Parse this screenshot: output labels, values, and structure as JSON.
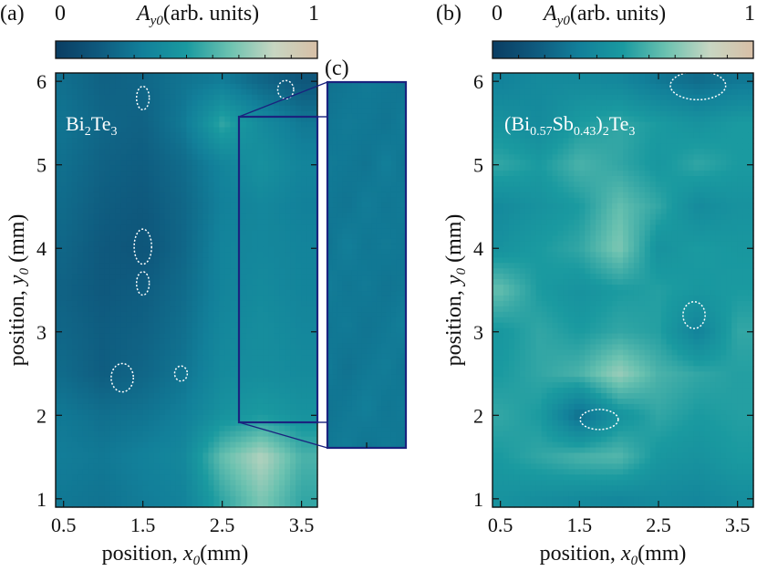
{
  "colors": {
    "colormap": [
      "#0a3d62",
      "#0f5a7e",
      "#12809a",
      "#1a9aa0",
      "#6cc2b0",
      "#c7d6c2",
      "#d8bfa6"
    ],
    "frame": "#111111",
    "inset_box": "#1a237e",
    "ellipse": "#ffffff"
  },
  "chart_data": [
    {
      "panel_label": "(a)",
      "type": "heatmap",
      "title": "Bi₂Te₃",
      "xlabel": "position, x₀(mm)",
      "ylabel": "position, y₀ (mm)",
      "xlim": [
        0.4,
        3.7
      ],
      "ylim": [
        0.9,
        6.1
      ],
      "xticks": [
        "0.5",
        "1.5",
        "2.5",
        "3.5"
      ],
      "yticks": [
        "1",
        "2",
        "3",
        "4",
        "5",
        "6"
      ],
      "colorbar": {
        "min_label": "0",
        "max_label": "1",
        "label": "A_y0 (arb. units)",
        "range": [
          0,
          1
        ]
      },
      "x": [
        0.5,
        1.0,
        1.5,
        2.0,
        2.5,
        3.0,
        3.5
      ],
      "y": [
        1.0,
        1.5,
        2.0,
        2.5,
        3.0,
        3.5,
        4.0,
        4.5,
        5.0,
        5.5,
        6.0
      ],
      "z": [
        [
          0.3,
          0.28,
          0.32,
          0.35,
          0.55,
          0.7,
          0.55
        ],
        [
          0.32,
          0.3,
          0.34,
          0.38,
          0.65,
          0.8,
          0.6
        ],
        [
          0.3,
          0.26,
          0.28,
          0.33,
          0.45,
          0.5,
          0.45
        ],
        [
          0.24,
          0.18,
          0.22,
          0.28,
          0.4,
          0.42,
          0.4
        ],
        [
          0.22,
          0.18,
          0.2,
          0.26,
          0.38,
          0.42,
          0.38
        ],
        [
          0.2,
          0.16,
          0.18,
          0.24,
          0.36,
          0.4,
          0.36
        ],
        [
          0.22,
          0.16,
          0.14,
          0.22,
          0.36,
          0.38,
          0.36
        ],
        [
          0.24,
          0.18,
          0.16,
          0.22,
          0.34,
          0.38,
          0.34
        ],
        [
          0.26,
          0.2,
          0.18,
          0.24,
          0.36,
          0.44,
          0.36
        ],
        [
          0.28,
          0.22,
          0.2,
          0.3,
          0.55,
          0.4,
          0.3
        ],
        [
          0.26,
          0.2,
          0.22,
          0.28,
          0.32,
          0.22,
          0.15
        ]
      ],
      "regions": [
        {
          "x": 1.5,
          "y": 5.8,
          "rx": 0.08,
          "ry": 0.14
        },
        {
          "x": 3.3,
          "y": 5.9,
          "rx": 0.1,
          "ry": 0.11
        },
        {
          "x": 1.5,
          "y": 4.02,
          "rx": 0.11,
          "ry": 0.21
        },
        {
          "x": 1.5,
          "y": 3.58,
          "rx": 0.08,
          "ry": 0.14
        },
        {
          "x": 1.24,
          "y": 2.45,
          "rx": 0.14,
          "ry": 0.17
        },
        {
          "x": 1.98,
          "y": 2.5,
          "rx": 0.08,
          "ry": 0.09
        }
      ],
      "inset_region": {
        "x0": 2.6,
        "x1": 3.55,
        "y0": 2.0,
        "y1": 5.5
      }
    },
    {
      "panel_label": "(c)",
      "type": "heatmap",
      "x": [
        0,
        1,
        2,
        3,
        4
      ],
      "y": [
        0,
        1,
        2,
        3,
        4,
        5,
        6,
        7,
        8,
        9
      ],
      "z": [
        [
          0.3,
          0.32,
          0.28,
          0.31,
          0.29
        ],
        [
          0.28,
          0.3,
          0.33,
          0.29,
          0.31
        ],
        [
          0.31,
          0.27,
          0.3,
          0.32,
          0.28
        ],
        [
          0.29,
          0.31,
          0.28,
          0.3,
          0.33
        ],
        [
          0.32,
          0.29,
          0.31,
          0.28,
          0.3
        ],
        [
          0.28,
          0.33,
          0.29,
          0.31,
          0.29
        ],
        [
          0.3,
          0.28,
          0.32,
          0.29,
          0.31
        ],
        [
          0.31,
          0.3,
          0.28,
          0.33,
          0.28
        ],
        [
          0.29,
          0.31,
          0.3,
          0.28,
          0.32
        ],
        [
          0.27,
          0.29,
          0.31,
          0.3,
          0.28
        ]
      ]
    },
    {
      "panel_label": "(b)",
      "type": "heatmap",
      "title": "(Bi₀.₅₇Sb₀.₄₃)₂Te₃",
      "xlabel": "position, x₀(mm)",
      "ylabel": "position, y₀ (mm)",
      "xlim": [
        0.4,
        3.7
      ],
      "ylim": [
        0.9,
        6.1
      ],
      "xticks": [
        "0.5",
        "1.5",
        "2.5",
        "3.5"
      ],
      "yticks": [
        "1",
        "2",
        "3",
        "4",
        "5",
        "6"
      ],
      "colorbar": {
        "min_label": "0",
        "max_label": "1",
        "label": "A_y0 (arb. units)",
        "range": [
          0,
          1
        ]
      },
      "x": [
        0.5,
        1.0,
        1.5,
        2.0,
        2.5,
        3.0,
        3.5
      ],
      "y": [
        1.0,
        1.5,
        2.0,
        2.5,
        3.0,
        3.5,
        4.0,
        4.5,
        5.0,
        5.5,
        6.0
      ],
      "z": [
        [
          0.45,
          0.42,
          0.4,
          0.38,
          0.4,
          0.38,
          0.42
        ],
        [
          0.5,
          0.55,
          0.6,
          0.62,
          0.48,
          0.45,
          0.5
        ],
        [
          0.55,
          0.5,
          0.25,
          0.45,
          0.55,
          0.5,
          0.52
        ],
        [
          0.5,
          0.55,
          0.6,
          0.75,
          0.6,
          0.55,
          0.52
        ],
        [
          0.48,
          0.55,
          0.5,
          0.55,
          0.52,
          0.35,
          0.55
        ],
        [
          0.65,
          0.5,
          0.45,
          0.5,
          0.52,
          0.48,
          0.5
        ],
        [
          0.45,
          0.5,
          0.55,
          0.7,
          0.45,
          0.5,
          0.48
        ],
        [
          0.4,
          0.45,
          0.5,
          0.65,
          0.55,
          0.4,
          0.45
        ],
        [
          0.55,
          0.5,
          0.6,
          0.55,
          0.48,
          0.55,
          0.5
        ],
        [
          0.45,
          0.4,
          0.5,
          0.55,
          0.5,
          0.45,
          0.5
        ],
        [
          0.35,
          0.4,
          0.4,
          0.38,
          0.3,
          0.25,
          0.3
        ]
      ],
      "regions": [
        {
          "x": 3.0,
          "y": 5.95,
          "rx": 0.35,
          "ry": 0.17
        },
        {
          "x": 2.95,
          "y": 3.2,
          "rx": 0.14,
          "ry": 0.16
        },
        {
          "x": 1.75,
          "y": 1.95,
          "rx": 0.24,
          "ry": 0.12
        }
      ]
    }
  ]
}
